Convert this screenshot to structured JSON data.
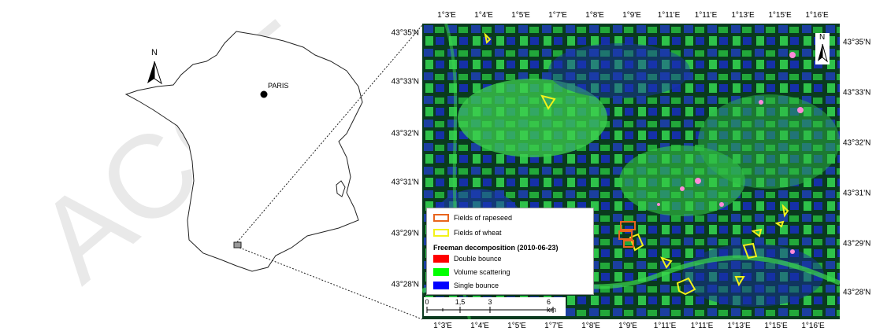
{
  "overview": {
    "north_label": "N",
    "city_label": "PARIS"
  },
  "satellite": {
    "north_label": "N",
    "top_ticks": [
      "1°3'E",
      "1°4'E",
      "1°5'E",
      "1°7'E",
      "1°8'E",
      "1°9'E",
      "1°11'E",
      "1°11'E",
      "1°13'E",
      "1°15'E",
      "1°16'E"
    ],
    "bottom_ticks": [
      "1°3'E",
      "1°4'E",
      "1°5'E",
      "1°7'E",
      "1°8'E",
      "1°9'E",
      "1°11'E",
      "1°11'E",
      "1°13'E",
      "1°15'E",
      "1°16'E"
    ],
    "left_ticks": [
      "43°35'N",
      "43°33'N",
      "43°32'N",
      "43°31'N",
      "43°29'N",
      "43°28'N"
    ],
    "right_ticks": [
      "43°35'N",
      "43°33'N",
      "43°32'N",
      "43°31'N",
      "43°29'N",
      "43°28'N"
    ]
  },
  "legend": {
    "rapeseed": "Fields of rapeseed",
    "wheat": "Fields of wheat",
    "title": "Freeman decomposition (2010-06-23)",
    "double": "Double bounce",
    "volume": "Volume scattering",
    "single": "Single bounce",
    "colors": {
      "rapeseed": "#e8651e",
      "wheat": "#f2f21a",
      "double": "#ff0000",
      "volume": "#00ff00",
      "single": "#0000ff"
    }
  },
  "scalebar": {
    "labels": [
      "0",
      "1,5",
      "3",
      "6 km"
    ]
  }
}
